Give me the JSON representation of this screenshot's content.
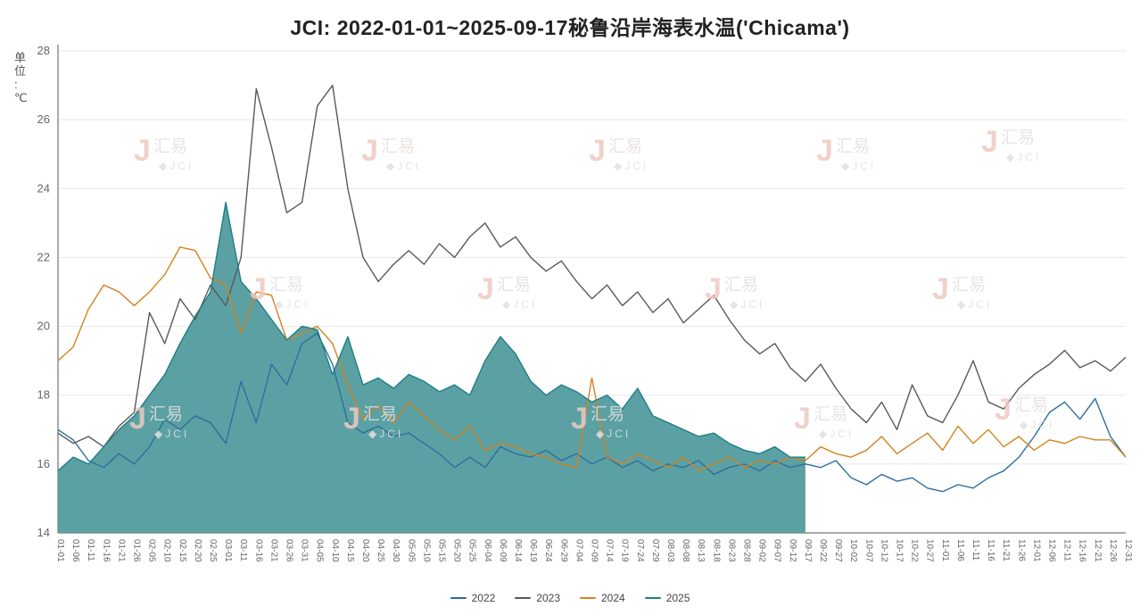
{
  "title": "JCI: 2022-01-01~2025-09-17秘鲁沿岸海表水温('Chicama')",
  "y_axis_unit": "单位:℃",
  "watermark": {
    "name": "jci-watermark",
    "mark": "J",
    "text_cn": "汇易",
    "text_en": "JCI",
    "mark_color": "#eec9c3",
    "text_color": "#e4e0de"
  },
  "legend": [
    {
      "label": "2022",
      "color": "#2e6e9e"
    },
    {
      "label": "2023",
      "color": "#595959"
    },
    {
      "label": "2024",
      "color": "#d4821f"
    },
    {
      "label": "2025",
      "color": "#1f7f84"
    }
  ],
  "chart_data": {
    "type": "line",
    "title": "JCI: 2022-01-01~2025-09-17秘鲁沿岸海表水温('Chicama')",
    "xlabel": "",
    "ylabel": "单位:℃",
    "ylim": [
      14,
      28
    ],
    "y_ticks": [
      14,
      16,
      18,
      20,
      22,
      24,
      26,
      28
    ],
    "grid": true,
    "legend_position": "bottom",
    "x": [
      "01-01",
      "01-06",
      "01-11",
      "01-16",
      "01-21",
      "01-26",
      "02-05",
      "02-10",
      "02-15",
      "02-20",
      "02-25",
      "03-01",
      "03-11",
      "03-16",
      "03-21",
      "03-26",
      "03-31",
      "04-05",
      "04-10",
      "04-15",
      "04-20",
      "04-25",
      "04-30",
      "05-05",
      "05-10",
      "05-15",
      "05-20",
      "05-25",
      "06-04",
      "06-09",
      "06-14",
      "06-19",
      "06-24",
      "06-29",
      "07-04",
      "07-09",
      "07-14",
      "07-19",
      "07-24",
      "07-29",
      "08-03",
      "08-08",
      "08-13",
      "08-18",
      "08-23",
      "08-28",
      "09-02",
      "09-07",
      "09-12",
      "09-17",
      "09-22",
      "09-27",
      "10-02",
      "10-07",
      "10-12",
      "10-17",
      "10-22",
      "10-27",
      "11-01",
      "11-06",
      "11-11",
      "11-16",
      "11-21",
      "11-26",
      "12-01",
      "12-06",
      "12-11",
      "12-16",
      "12-21",
      "12-26",
      "12-31"
    ],
    "series": [
      {
        "name": "2022",
        "style": "line",
        "color": "#2e6e9e",
        "values": [
          17.0,
          16.7,
          16.1,
          15.9,
          16.3,
          16.0,
          16.5,
          17.3,
          17.0,
          17.4,
          17.2,
          16.6,
          18.4,
          17.2,
          18.9,
          18.3,
          19.5,
          19.8,
          18.9,
          17.2,
          16.9,
          17.1,
          16.8,
          16.9,
          16.6,
          16.3,
          15.9,
          16.2,
          15.9,
          16.5,
          16.3,
          16.2,
          16.4,
          16.1,
          16.3,
          16.0,
          16.2,
          15.9,
          16.1,
          15.8,
          16.0,
          15.9,
          16.1,
          15.7,
          15.9,
          16.0,
          15.8,
          16.1,
          15.9,
          16.0,
          15.9,
          16.1,
          15.6,
          15.4,
          15.7,
          15.5,
          15.6,
          15.3,
          15.2,
          15.4,
          15.3,
          15.6,
          15.8,
          16.2,
          16.8,
          17.5,
          17.8,
          17.3,
          17.9,
          16.8,
          16.2
        ]
      },
      {
        "name": "2023",
        "style": "line",
        "color": "#595959",
        "values": [
          16.9,
          16.6,
          16.8,
          16.5,
          17.1,
          17.5,
          20.4,
          19.5,
          20.8,
          20.2,
          21.2,
          20.6,
          22.0,
          26.9,
          25.2,
          23.3,
          23.6,
          26.4,
          27.0,
          24.0,
          22.0,
          21.3,
          21.8,
          22.2,
          21.8,
          22.4,
          22.0,
          22.6,
          23.0,
          22.3,
          22.6,
          22.0,
          21.6,
          21.9,
          21.3,
          20.8,
          21.2,
          20.6,
          21.0,
          20.4,
          20.8,
          20.1,
          20.5,
          20.9,
          20.2,
          19.6,
          19.2,
          19.5,
          18.8,
          18.4,
          18.9,
          18.2,
          17.6,
          17.2,
          17.8,
          17.0,
          18.3,
          17.4,
          17.2,
          18.0,
          19.0,
          17.8,
          17.6,
          18.2,
          18.6,
          18.9,
          19.3,
          18.8,
          19.0,
          18.7,
          19.1
        ]
      },
      {
        "name": "2024",
        "style": "line",
        "color": "#d4821f",
        "values": [
          19.0,
          19.4,
          20.5,
          21.2,
          21.0,
          20.6,
          21.0,
          21.5,
          22.3,
          22.2,
          21.4,
          21.2,
          19.8,
          21.0,
          20.9,
          19.6,
          19.8,
          20.0,
          19.5,
          18.3,
          17.3,
          17.7,
          17.2,
          17.8,
          17.4,
          17.0,
          16.7,
          17.1,
          16.4,
          16.6,
          16.5,
          16.3,
          16.2,
          16.0,
          15.9,
          18.5,
          16.2,
          16.0,
          16.3,
          16.1,
          15.9,
          16.2,
          15.8,
          16.0,
          16.2,
          15.9,
          16.1,
          16.0,
          16.2,
          16.1,
          16.5,
          16.3,
          16.2,
          16.4,
          16.8,
          16.3,
          16.6,
          16.9,
          16.4,
          17.1,
          16.6,
          17.0,
          16.5,
          16.8,
          16.4,
          16.7,
          16.6,
          16.8,
          16.7,
          16.7,
          16.2
        ]
      },
      {
        "name": "2025",
        "style": "area",
        "color": "#1f7f84",
        "fill": "#4f9a9d",
        "values": [
          15.8,
          16.2,
          16.0,
          16.5,
          17.0,
          17.4,
          18.0,
          18.6,
          19.5,
          20.3,
          21.0,
          23.6,
          21.3,
          20.8,
          20.2,
          19.6,
          20.0,
          19.9,
          18.6,
          19.7,
          18.3,
          18.5,
          18.2,
          18.6,
          18.4,
          18.1,
          18.3,
          18.0,
          19.0,
          19.7,
          19.2,
          18.4,
          18.0,
          18.3,
          18.1,
          17.8,
          18.0,
          17.6,
          18.2,
          17.4,
          17.2,
          17.0,
          16.8,
          16.9,
          16.6,
          16.4,
          16.3,
          16.5,
          16.2,
          16.2,
          null,
          null,
          null,
          null,
          null,
          null,
          null,
          null,
          null,
          null,
          null,
          null,
          null,
          null,
          null,
          null,
          null,
          null,
          null,
          null,
          null
        ]
      }
    ]
  }
}
